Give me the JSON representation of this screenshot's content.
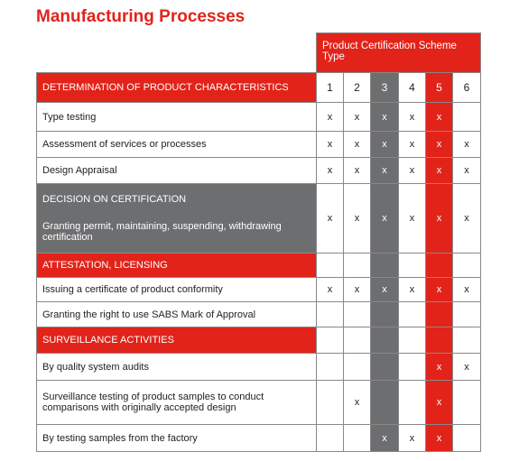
{
  "header": {
    "title": "Manufacturing Processes"
  },
  "table": {
    "header": "Product Certification Scheme Type",
    "columns": [
      1,
      2,
      3,
      4,
      5,
      6
    ],
    "sections": [
      {
        "title": "DETERMINATION OF PRODUCT CHARACTERISTICS",
        "rows": [
          {
            "label": "Type testing",
            "marks": [
              "x",
              "x",
              "x",
              "x",
              "x",
              null
            ]
          },
          {
            "label": "Assessment of services or processes",
            "marks": [
              "x",
              "x",
              "x",
              "x",
              "x",
              "x"
            ]
          },
          {
            "label": "Design Appraisal",
            "marks": [
              "x",
              "x",
              "x",
              "x",
              "x",
              "x"
            ]
          }
        ]
      },
      {
        "title": "DECISION ON CERTIFICATION",
        "rows": [
          {
            "label": "Granting permit, maintaining, suspending, withdrawing certification",
            "marks": [
              "x",
              "x",
              "x",
              "x",
              "x",
              "x"
            ]
          }
        ]
      },
      {
        "title": "ATTESTATION, LICENSING",
        "rows": [
          {
            "label": "Issuing a certificate of product conformity",
            "marks": [
              "x",
              "x",
              "x",
              "x",
              "x",
              "x"
            ]
          },
          {
            "label": "Granting the right to use SABS Mark of Approval",
            "marks": [
              null,
              null,
              null,
              null,
              null,
              null
            ]
          }
        ]
      },
      {
        "title": "SURVEILLANCE ACTIVITIES",
        "rows": [
          {
            "label": "By quality system audits",
            "marks": [
              null,
              null,
              null,
              null,
              "x",
              "x"
            ]
          },
          {
            "label": "Surveillance testing of product samples to conduct comparisons with originally accepted design",
            "marks": [
              null,
              "x",
              null,
              null,
              "x",
              null
            ]
          },
          {
            "label": "By testing samples from the factory",
            "marks": [
              null,
              null,
              "x",
              "x",
              "x",
              null
            ]
          }
        ]
      }
    ]
  }
}
